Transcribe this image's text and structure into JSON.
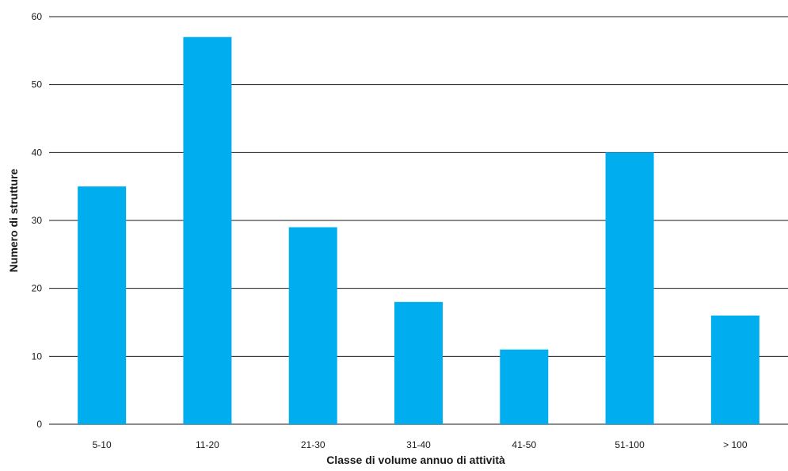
{
  "chart_data": {
    "type": "bar",
    "categories": [
      "5-10",
      "11-20",
      "21-30",
      "31-40",
      "41-50",
      "51-100",
      "> 100"
    ],
    "values": [
      35,
      57,
      29,
      18,
      11,
      40,
      16
    ],
    "xlabel": "Classe di volume annuo di attività",
    "ylabel": "Numero di strutture",
    "ylim": [
      0,
      60
    ],
    "yticks": [
      0,
      10,
      20,
      30,
      40,
      50,
      60
    ],
    "grid": true,
    "bar_color": "#00adef"
  }
}
